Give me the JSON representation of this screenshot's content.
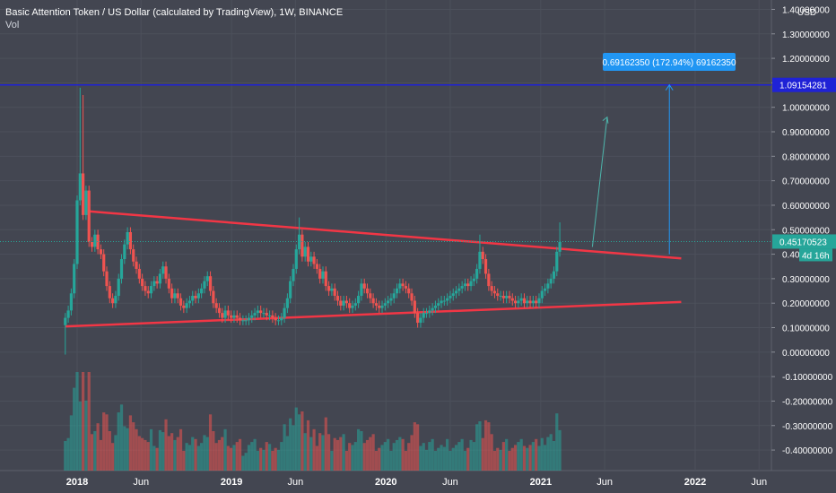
{
  "header": {
    "title": "Basic Attention Token / US Dollar (calculated by TradingView), 1W, BINANCE",
    "volume_label": "Vol"
  },
  "price_axis": {
    "currency": "USD",
    "ticks": [
      "1.40000000",
      "1.30000000",
      "1.20000000",
      "1.10000000",
      "1.00000000",
      "0.90000000",
      "0.80000000",
      "0.70000000",
      "0.60000000",
      "0.50000000",
      "0.40",
      "0.30000000",
      "0.20000000",
      "0.10000000",
      "0.00000000",
      "-0.10000000",
      "-0.20000000",
      "-0.30000000",
      "-0.40000000"
    ],
    "tick_values": [
      1.4,
      1.3,
      1.2,
      1.1,
      1.0,
      0.9,
      0.8,
      0.7,
      0.6,
      0.5,
      0.4,
      0.3,
      0.2,
      0.1,
      0.0,
      -0.1,
      -0.2,
      -0.3,
      -0.4
    ]
  },
  "time_axis": {
    "labels": [
      "2018",
      "Jun",
      "2019",
      "Jun",
      "2020",
      "Jun",
      "2021",
      "Jun",
      "2022",
      "Jun"
    ],
    "dates": [
      "2018-01-01",
      "2018-06-01",
      "2019-01-01",
      "2019-06-01",
      "2020-01-01",
      "2020-06-01",
      "2021-01-01",
      "2021-06-01",
      "2022-01-01",
      "2022-06-01"
    ],
    "bold": [
      true,
      false,
      true,
      false,
      true,
      false,
      true,
      false,
      true,
      false
    ]
  },
  "labels": {
    "target_price": "1.09154281",
    "current_price": "0.45170523",
    "countdown": "4d 16h",
    "measure": "0.69162350 (172.94%) 69162350"
  },
  "colors": {
    "background": "#434651",
    "up": "#26a69a",
    "down": "#ef5350",
    "trendline": "#f23645",
    "target_line": "#1f22d6",
    "measure": "#2196f3",
    "projection": "#4db6ac",
    "grid": "#4c505b",
    "axis_text": "#ffffff"
  },
  "chart_data": {
    "type": "candlestick",
    "title": "Basic Attention Token / US Dollar (calculated by TradingView), 1W, BINANCE",
    "ylabel": "USD",
    "ylim": [
      -0.44,
      1.42
    ],
    "xlim": [
      "2017-11-01",
      "2022-07-01"
    ],
    "grid": true,
    "candles_close": [
      [
        "2017-12-04",
        0.14
      ],
      [
        "2017-12-11",
        0.17
      ],
      [
        "2017-12-18",
        0.24
      ],
      [
        "2017-12-25",
        0.36
      ],
      [
        "2018-01-01",
        0.62
      ],
      [
        "2018-01-08",
        0.73
      ],
      [
        "2018-01-15",
        0.56
      ],
      [
        "2018-01-22",
        0.66
      ],
      [
        "2018-01-29",
        0.45
      ],
      [
        "2018-02-05",
        0.43
      ],
      [
        "2018-02-12",
        0.48
      ],
      [
        "2018-02-19",
        0.42
      ],
      [
        "2018-02-26",
        0.4
      ],
      [
        "2018-03-05",
        0.33
      ],
      [
        "2018-03-12",
        0.27
      ],
      [
        "2018-03-19",
        0.22
      ],
      [
        "2018-03-26",
        0.2
      ],
      [
        "2018-04-02",
        0.23
      ],
      [
        "2018-04-09",
        0.3
      ],
      [
        "2018-04-16",
        0.38
      ],
      [
        "2018-04-23",
        0.44
      ],
      [
        "2018-04-30",
        0.49
      ],
      [
        "2018-05-07",
        0.42
      ],
      [
        "2018-05-14",
        0.37
      ],
      [
        "2018-05-21",
        0.34
      ],
      [
        "2018-05-28",
        0.3
      ],
      [
        "2018-06-04",
        0.27
      ],
      [
        "2018-06-11",
        0.25
      ],
      [
        "2018-06-18",
        0.24
      ],
      [
        "2018-06-25",
        0.27
      ],
      [
        "2018-07-02",
        0.29
      ],
      [
        "2018-07-09",
        0.28
      ],
      [
        "2018-07-16",
        0.32
      ],
      [
        "2018-07-23",
        0.35
      ],
      [
        "2018-07-30",
        0.3
      ],
      [
        "2018-08-06",
        0.26
      ],
      [
        "2018-08-13",
        0.22
      ],
      [
        "2018-08-20",
        0.24
      ],
      [
        "2018-08-27",
        0.22
      ],
      [
        "2018-09-03",
        0.19
      ],
      [
        "2018-09-10",
        0.18
      ],
      [
        "2018-09-17",
        0.2
      ],
      [
        "2018-09-24",
        0.21
      ],
      [
        "2018-10-01",
        0.23
      ],
      [
        "2018-10-08",
        0.22
      ],
      [
        "2018-10-15",
        0.24
      ],
      [
        "2018-10-22",
        0.26
      ],
      [
        "2018-10-29",
        0.29
      ],
      [
        "2018-11-05",
        0.31
      ],
      [
        "2018-11-12",
        0.25
      ],
      [
        "2018-11-19",
        0.2
      ],
      [
        "2018-11-26",
        0.18
      ],
      [
        "2018-12-03",
        0.16
      ],
      [
        "2018-12-10",
        0.14
      ],
      [
        "2018-12-17",
        0.17
      ],
      [
        "2018-12-24",
        0.15
      ],
      [
        "2018-12-31",
        0.14
      ],
      [
        "2019-01-07",
        0.15
      ],
      [
        "2019-01-14",
        0.14
      ],
      [
        "2019-01-21",
        0.13
      ],
      [
        "2019-01-28",
        0.13
      ],
      [
        "2019-02-04",
        0.13
      ],
      [
        "2019-02-11",
        0.14
      ],
      [
        "2019-02-18",
        0.15
      ],
      [
        "2019-02-25",
        0.16
      ],
      [
        "2019-03-04",
        0.17
      ],
      [
        "2019-03-11",
        0.16
      ],
      [
        "2019-03-18",
        0.16
      ],
      [
        "2019-03-25",
        0.15
      ],
      [
        "2019-04-01",
        0.15
      ],
      [
        "2019-04-08",
        0.14
      ],
      [
        "2019-04-15",
        0.13
      ],
      [
        "2019-04-22",
        0.13
      ],
      [
        "2019-04-29",
        0.14
      ],
      [
        "2019-05-06",
        0.18
      ],
      [
        "2019-05-13",
        0.22
      ],
      [
        "2019-05-20",
        0.29
      ],
      [
        "2019-05-27",
        0.34
      ],
      [
        "2019-06-03",
        0.42
      ],
      [
        "2019-06-10",
        0.48
      ],
      [
        "2019-06-17",
        0.39
      ],
      [
        "2019-06-24",
        0.43
      ],
      [
        "2019-07-01",
        0.37
      ],
      [
        "2019-07-08",
        0.39
      ],
      [
        "2019-07-15",
        0.36
      ],
      [
        "2019-07-22",
        0.34
      ],
      [
        "2019-07-29",
        0.3
      ],
      [
        "2019-08-05",
        0.33
      ],
      [
        "2019-08-12",
        0.27
      ],
      [
        "2019-08-19",
        0.25
      ],
      [
        "2019-08-26",
        0.26
      ],
      [
        "2019-09-02",
        0.23
      ],
      [
        "2019-09-09",
        0.21
      ],
      [
        "2019-09-16",
        0.19
      ],
      [
        "2019-09-23",
        0.21
      ],
      [
        "2019-09-30",
        0.2
      ],
      [
        "2019-10-07",
        0.18
      ],
      [
        "2019-10-14",
        0.19
      ],
      [
        "2019-10-21",
        0.2
      ],
      [
        "2019-10-28",
        0.23
      ],
      [
        "2019-11-04",
        0.28
      ],
      [
        "2019-11-11",
        0.26
      ],
      [
        "2019-11-18",
        0.24
      ],
      [
        "2019-11-25",
        0.22
      ],
      [
        "2019-12-02",
        0.2
      ],
      [
        "2019-12-09",
        0.19
      ],
      [
        "2019-12-16",
        0.18
      ],
      [
        "2019-12-23",
        0.19
      ],
      [
        "2019-12-30",
        0.2
      ],
      [
        "2020-01-06",
        0.21
      ],
      [
        "2020-01-13",
        0.22
      ],
      [
        "2020-01-20",
        0.24
      ],
      [
        "2020-01-27",
        0.26
      ],
      [
        "2020-02-03",
        0.28
      ],
      [
        "2020-02-10",
        0.27
      ],
      [
        "2020-02-17",
        0.26
      ],
      [
        "2020-02-24",
        0.24
      ],
      [
        "2020-03-02",
        0.21
      ],
      [
        "2020-03-09",
        0.16
      ],
      [
        "2020-03-16",
        0.12
      ],
      [
        "2020-03-23",
        0.14
      ],
      [
        "2020-03-30",
        0.16
      ],
      [
        "2020-04-06",
        0.16
      ],
      [
        "2020-04-13",
        0.17
      ],
      [
        "2020-04-20",
        0.18
      ],
      [
        "2020-04-27",
        0.19
      ],
      [
        "2020-05-04",
        0.2
      ],
      [
        "2020-05-11",
        0.21
      ],
      [
        "2020-05-18",
        0.21
      ],
      [
        "2020-05-25",
        0.22
      ],
      [
        "2020-06-01",
        0.23
      ],
      [
        "2020-06-08",
        0.24
      ],
      [
        "2020-06-15",
        0.25
      ],
      [
        "2020-06-22",
        0.26
      ],
      [
        "2020-06-29",
        0.27
      ],
      [
        "2020-07-06",
        0.28
      ],
      [
        "2020-07-13",
        0.27
      ],
      [
        "2020-07-20",
        0.29
      ],
      [
        "2020-07-27",
        0.3
      ],
      [
        "2020-08-03",
        0.34
      ],
      [
        "2020-08-10",
        0.41
      ],
      [
        "2020-08-17",
        0.38
      ],
      [
        "2020-08-24",
        0.32
      ],
      [
        "2020-08-31",
        0.27
      ],
      [
        "2020-09-07",
        0.25
      ],
      [
        "2020-09-14",
        0.24
      ],
      [
        "2020-09-21",
        0.23
      ],
      [
        "2020-09-28",
        0.23
      ],
      [
        "2020-10-05",
        0.22
      ],
      [
        "2020-10-12",
        0.23
      ],
      [
        "2020-10-19",
        0.22
      ],
      [
        "2020-10-26",
        0.21
      ],
      [
        "2020-11-02",
        0.2
      ],
      [
        "2020-11-09",
        0.21
      ],
      [
        "2020-11-16",
        0.22
      ],
      [
        "2020-11-23",
        0.2
      ],
      [
        "2020-11-30",
        0.21
      ],
      [
        "2020-12-07",
        0.2
      ],
      [
        "2020-12-14",
        0.21
      ],
      [
        "2020-12-21",
        0.2
      ],
      [
        "2020-12-28",
        0.22
      ],
      [
        "2021-01-04",
        0.25
      ],
      [
        "2021-01-11",
        0.26
      ],
      [
        "2021-01-18",
        0.28
      ],
      [
        "2021-01-25",
        0.3
      ],
      [
        "2021-02-01",
        0.33
      ],
      [
        "2021-02-08",
        0.41
      ],
      [
        "2021-02-15",
        0.45
      ]
    ],
    "trendlines": [
      {
        "from": [
          "2017-12-04",
          0.105
        ],
        "to": [
          "2021-11-29",
          0.205
        ]
      },
      {
        "from": [
          "2018-01-29",
          0.575
        ],
        "to": [
          "2021-11-29",
          0.383
        ]
      }
    ],
    "target_level": 1.09154281,
    "current_price": 0.45170523,
    "measure": {
      "date": "2021-11-01",
      "from": 0.4,
      "to": 1.09154281,
      "delta": 0.6916235,
      "percent": 172.94
    },
    "projection": {
      "from": [
        "2021-05-03",
        0.43
      ],
      "to": [
        "2021-06-07",
        0.96
      ]
    },
    "volume_scale_max": 1.0
  }
}
